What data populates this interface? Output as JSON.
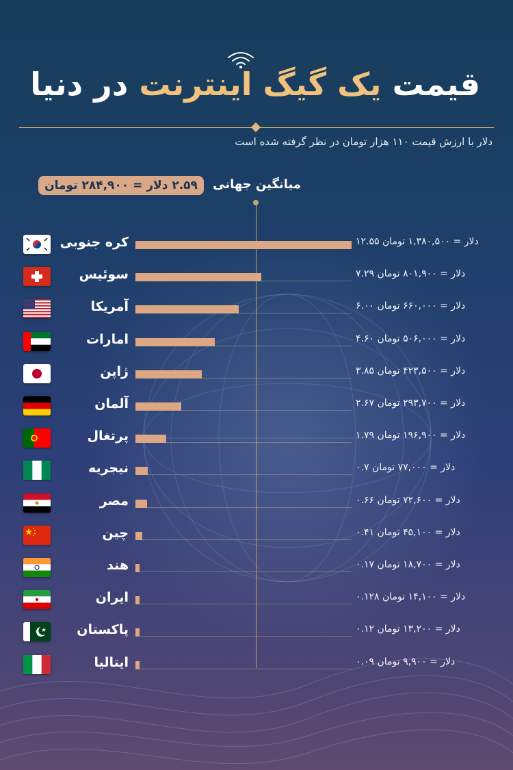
{
  "header": {
    "title_part1": "قیمت",
    "title_highlight": "یک گیگ اینترنت",
    "title_part2": "در دنیا",
    "subtitle": "دلار با ارزش قیمت ۱۱۰ هزار تومان در نظر گرفته شده است"
  },
  "average": {
    "label": "میانگین جهانی",
    "value_text": "۲.۵۹ دلار = ۲۸۴,۹۰۰ تومان",
    "usd": 2.59
  },
  "colors": {
    "accent": "#f1c27d",
    "bar": "#dba784",
    "pill": "#d9a889",
    "average_line": "#c8a56f"
  },
  "chart_data": {
    "type": "bar",
    "orientation": "horizontal",
    "title": "قیمت یک گیگ اینترنت در دنیا",
    "value_unit": "دلار",
    "xlim": [
      0,
      12.55
    ],
    "reference_line": {
      "label": "میانگین جهانی",
      "value": 2.59
    },
    "categories": [
      "کره جنوبی",
      "سوئیس",
      "آمریکا",
      "امارات",
      "ژاپن",
      "آلمان",
      "پرتغال",
      "نیجریه",
      "مصر",
      "چین",
      "هند",
      "ایران",
      "پاکستان",
      "ایتالیا"
    ],
    "values": [
      12.55,
      7.29,
      6.0,
      4.6,
      3.85,
      2.67,
      1.79,
      0.7,
      0.66,
      0.41,
      0.17,
      0.128,
      0.12,
      0.09
    ],
    "toman": [
      1380500,
      801900,
      660000,
      506000,
      423500,
      293700,
      196900,
      77000,
      72600,
      45100,
      18700,
      14100,
      13200,
      9900
    ],
    "labels": [
      "۱۲.۵۵ دلار = ۱,۳۸۰,۵۰۰ تومان",
      "۷.۲۹ دلار = ۸۰۱,۹۰۰ تومان",
      "۶.۰۰ دلار = ۶۶۰,۰۰۰ تومان",
      "۴.۶۰ دلار = ۵۰۶,۰۰۰ تومان",
      "۳.۸۵ دلار = ۴۲۳,۵۰۰ تومان",
      "۲.۶۷ دلار = ۲۹۳,۷۰۰ تومان",
      "۱.۷۹ دلار = ۱۹۶,۹۰۰ تومان",
      "۰.۷ دلار = ۷۷,۰۰۰ تومان",
      "۰.۶۶ دلار = ۷۲,۶۰۰ تومان",
      "۰.۴۱ دلار = ۴۵,۱۰۰ تومان",
      "۰.۱۷ دلار = ۱۸,۷۰۰ تومان",
      "۰.۱۲۸ دلار = ۱۴,۱۰۰ تومان",
      "۰.۱۲ دلار = ۱۳,۲۰۰ تومان",
      "۰.۰۹ دلار = ۹,۹۰۰ تومان"
    ],
    "flags": [
      "south-korea-flag-icon",
      "switzerland-flag-icon",
      "usa-flag-icon",
      "uae-flag-icon",
      "japan-flag-icon",
      "germany-flag-icon",
      "portugal-flag-icon",
      "nigeria-flag-icon",
      "egypt-flag-icon",
      "china-flag-icon",
      "india-flag-icon",
      "iran-flag-icon",
      "pakistan-flag-icon",
      "italy-flag-icon"
    ]
  }
}
